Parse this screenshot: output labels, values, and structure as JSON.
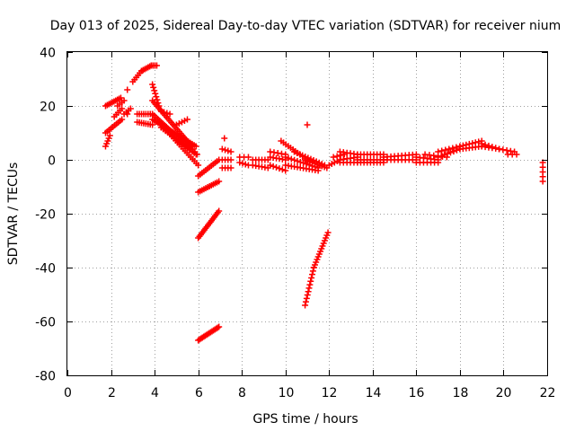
{
  "chart_data": {
    "type": "scatter",
    "title": "Day 013 of 2025, Sidereal Day-to-day VTEC variation (SDTVAR) for receiver nium",
    "xlabel": "GPS time / hours",
    "ylabel": "SDTVAR / TECUs",
    "xlim": [
      0,
      22
    ],
    "ylim": [
      -80,
      40
    ],
    "xticks": [
      0,
      2,
      4,
      6,
      8,
      10,
      12,
      14,
      16,
      18,
      20,
      22
    ],
    "yticks": [
      -80,
      -60,
      -40,
      -20,
      0,
      20,
      40
    ],
    "grid": true,
    "marker": "+",
    "color": "#ff0000",
    "segments": [
      {
        "x0": 1.75,
        "x1": 2.45,
        "y0": 20,
        "y1": 23,
        "n": 10
      },
      {
        "x0": 1.75,
        "x1": 2.5,
        "y0": 10,
        "y1": 15,
        "n": 10
      },
      {
        "x0": 1.75,
        "x1": 1.95,
        "y0": 5,
        "y1": 9,
        "n": 5
      },
      {
        "x0": 2.15,
        "x1": 2.5,
        "y0": 16,
        "y1": 19,
        "n": 5
      },
      {
        "x0": 2.3,
        "x1": 2.6,
        "y0": 20,
        "y1": 22,
        "n": 4
      },
      {
        "x0": 2.6,
        "x1": 2.9,
        "y0": 17,
        "y1": 19,
        "n": 4
      },
      {
        "x0": 2.75,
        "x1": 2.75,
        "y0": 26,
        "y1": 26,
        "n": 1
      },
      {
        "x0": 2.75,
        "x1": 2.75,
        "y0": 17,
        "y1": 17,
        "n": 1
      },
      {
        "x0": 3.0,
        "x1": 3.4,
        "y0": 29,
        "y1": 33,
        "n": 6
      },
      {
        "x0": 3.4,
        "x1": 3.85,
        "y0": 33,
        "y1": 35,
        "n": 7
      },
      {
        "x0": 3.85,
        "x1": 4.1,
        "y0": 35,
        "y1": 35,
        "n": 4
      },
      {
        "x0": 3.2,
        "x1": 3.9,
        "y0": 17,
        "y1": 17,
        "n": 8
      },
      {
        "x0": 3.2,
        "x1": 3.9,
        "y0": 14,
        "y1": 13,
        "n": 8
      },
      {
        "x0": 3.9,
        "x1": 4.2,
        "y0": 28,
        "y1": 20,
        "n": 8
      },
      {
        "x0": 3.9,
        "x1": 5.7,
        "y0": 22,
        "y1": 5,
        "n": 26
      },
      {
        "x0": 3.9,
        "x1": 5.9,
        "y0": 17,
        "y1": 2,
        "n": 26
      },
      {
        "x0": 3.9,
        "x1": 5.9,
        "y0": 15,
        "y1": 5,
        "n": 24
      },
      {
        "x0": 4.2,
        "x1": 6.0,
        "y0": 14,
        "y1": -2,
        "n": 22
      },
      {
        "x0": 4.3,
        "x1": 5.6,
        "y0": 12,
        "y1": 4,
        "n": 14
      },
      {
        "x0": 5.0,
        "x1": 5.5,
        "y0": 13,
        "y1": 15,
        "n": 5
      },
      {
        "x0": 4.3,
        "x1": 4.7,
        "y0": 18,
        "y1": 17,
        "n": 4
      },
      {
        "x0": 5.2,
        "x1": 5.95,
        "y0": 9,
        "y1": 2,
        "n": 8
      },
      {
        "x0": 6.0,
        "x1": 6.95,
        "y0": -6,
        "y1": 0,
        "n": 12
      },
      {
        "x0": 6.0,
        "x1": 6.95,
        "y0": -12,
        "y1": -8,
        "n": 12
      },
      {
        "x0": 6.0,
        "x1": 6.95,
        "y0": -29,
        "y1": -19,
        "n": 18
      },
      {
        "x0": 6.0,
        "x1": 6.95,
        "y0": -67,
        "y1": -62,
        "n": 16
      },
      {
        "x0": 7.1,
        "x1": 7.5,
        "y0": 4,
        "y1": 3,
        "n": 4
      },
      {
        "x0": 7.1,
        "x1": 7.5,
        "y0": 0,
        "y1": 0,
        "n": 4
      },
      {
        "x0": 7.1,
        "x1": 7.5,
        "y0": -3,
        "y1": -3,
        "n": 4
      },
      {
        "x0": 7.2,
        "x1": 7.2,
        "y0": 8,
        "y1": 8,
        "n": 1
      },
      {
        "x0": 7.9,
        "x1": 8.3,
        "y0": -1,
        "y1": -2,
        "n": 4
      },
      {
        "x0": 7.9,
        "x1": 8.3,
        "y0": 1,
        "y1": 1,
        "n": 3
      },
      {
        "x0": 8.5,
        "x1": 9.2,
        "y0": -2,
        "y1": -3,
        "n": 6
      },
      {
        "x0": 8.5,
        "x1": 9.2,
        "y0": 0,
        "y1": 0,
        "n": 6
      },
      {
        "x0": 9.3,
        "x1": 10.0,
        "y0": -2,
        "y1": -4,
        "n": 6
      },
      {
        "x0": 9.3,
        "x1": 10.0,
        "y0": 1,
        "y1": 0,
        "n": 6
      },
      {
        "x0": 9.3,
        "x1": 10.0,
        "y0": 3,
        "y1": 2,
        "n": 5
      },
      {
        "x0": 10.0,
        "x1": 11.5,
        "y0": 1,
        "y1": -3,
        "n": 12
      },
      {
        "x0": 10.0,
        "x1": 11.5,
        "y0": -2,
        "y1": -4,
        "n": 12
      },
      {
        "x0": 9.8,
        "x1": 11.0,
        "y0": 7,
        "y1": 0,
        "n": 12
      },
      {
        "x0": 10.4,
        "x1": 11.8,
        "y0": 3,
        "y1": -2,
        "n": 12
      },
      {
        "x0": 10.9,
        "x1": 11.9,
        "y0": 0,
        "y1": -3,
        "n": 10
      },
      {
        "x0": 11.0,
        "x1": 11.0,
        "y0": 13,
        "y1": 13,
        "n": 1
      },
      {
        "x0": 10.9,
        "x1": 11.3,
        "y0": -54,
        "y1": -40,
        "n": 12
      },
      {
        "x0": 11.3,
        "x1": 11.95,
        "y0": -40,
        "y1": -27,
        "n": 14
      },
      {
        "x0": 12.0,
        "x1": 12.5,
        "y0": -2,
        "y1": 0,
        "n": 5
      },
      {
        "x0": 12.2,
        "x1": 12.7,
        "y0": 1,
        "y1": 2,
        "n": 4
      },
      {
        "x0": 12.5,
        "x1": 13.3,
        "y0": 3,
        "y1": 2,
        "n": 6
      },
      {
        "x0": 12.5,
        "x1": 13.3,
        "y0": 0,
        "y1": 1,
        "n": 6
      },
      {
        "x0": 12.5,
        "x1": 13.3,
        "y0": -1,
        "y1": -1,
        "n": 6
      },
      {
        "x0": 13.3,
        "x1": 14.5,
        "y0": 2,
        "y1": 2,
        "n": 9
      },
      {
        "x0": 13.3,
        "x1": 14.5,
        "y0": 0,
        "y1": 0,
        "n": 9
      },
      {
        "x0": 13.3,
        "x1": 14.5,
        "y0": -1,
        "y1": -1,
        "n": 9
      },
      {
        "x0": 14.5,
        "x1": 16.0,
        "y0": 1,
        "y1": 2,
        "n": 10
      },
      {
        "x0": 14.5,
        "x1": 16.0,
        "y0": 0,
        "y1": 0,
        "n": 10
      },
      {
        "x0": 16.0,
        "x1": 17.0,
        "y0": 1,
        "y1": 0,
        "n": 7
      },
      {
        "x0": 16.0,
        "x1": 17.0,
        "y0": -1,
        "y1": -1,
        "n": 7
      },
      {
        "x0": 16.4,
        "x1": 17.4,
        "y0": 2,
        "y1": 1,
        "n": 6
      },
      {
        "x0": 17.0,
        "x1": 18.0,
        "y0": 1,
        "y1": 4,
        "n": 8
      },
      {
        "x0": 17.0,
        "x1": 18.0,
        "y0": 3,
        "y1": 5,
        "n": 7
      },
      {
        "x0": 18.0,
        "x1": 19.0,
        "y0": 5,
        "y1": 7,
        "n": 8
      },
      {
        "x0": 18.0,
        "x1": 19.0,
        "y0": 4,
        "y1": 5,
        "n": 8
      },
      {
        "x0": 19.0,
        "x1": 19.8,
        "y0": 6,
        "y1": 4,
        "n": 6
      },
      {
        "x0": 19.0,
        "x1": 19.8,
        "y0": 5,
        "y1": 4,
        "n": 6
      },
      {
        "x0": 19.8,
        "x1": 20.5,
        "y0": 4,
        "y1": 3,
        "n": 5
      },
      {
        "x0": 20.2,
        "x1": 20.6,
        "y0": 2,
        "y1": 2,
        "n": 3
      },
      {
        "x0": 21.8,
        "x1": 21.8,
        "y0": -8,
        "y1": -1,
        "n": 5
      }
    ]
  }
}
